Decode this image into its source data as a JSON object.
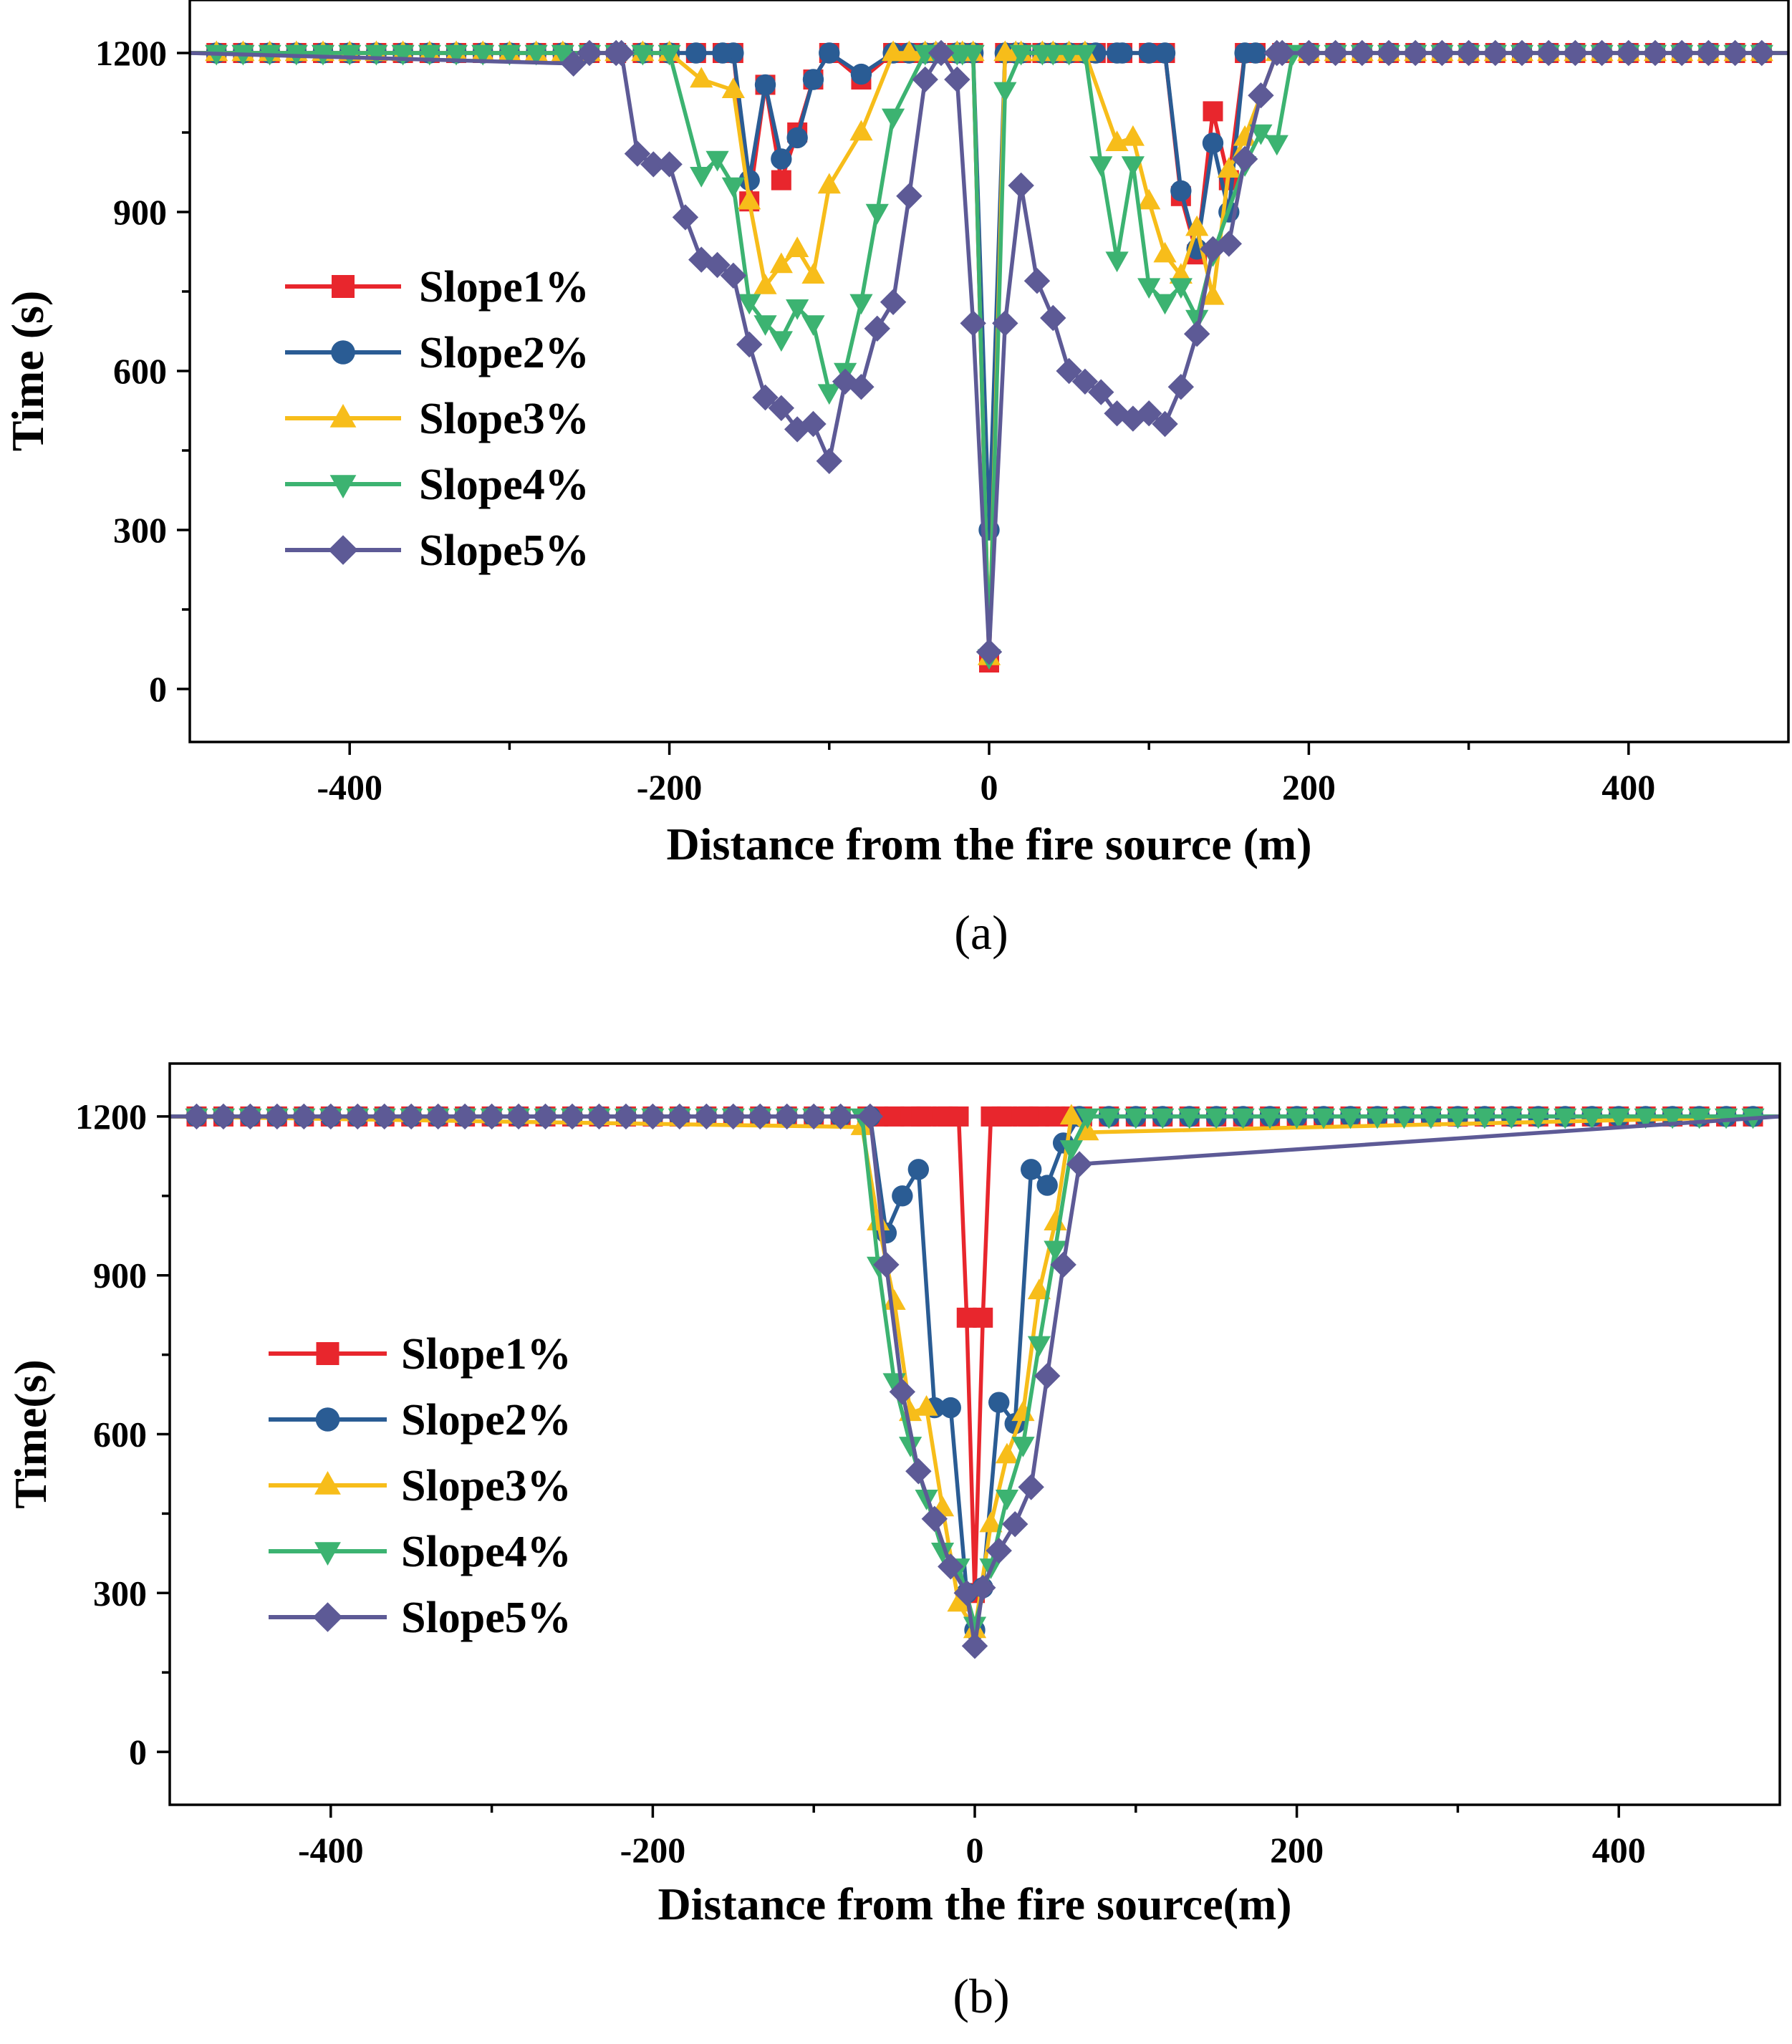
{
  "chart_data": [
    {
      "type": "line",
      "panel_label": "(a)",
      "xlabel": "Distance from the fire source (m)",
      "ylabel": "Time (s)",
      "xlim": [
        -500,
        500
      ],
      "ylim": [
        -100,
        1300
      ],
      "xticks": [
        -400,
        -200,
        0,
        200,
        400
      ],
      "xtick_labels": [
        "-400",
        "-200",
        "0",
        "200",
        "400"
      ],
      "yticks": [
        0,
        300,
        600,
        900,
        1200
      ],
      "ytick_labels": [
        "0",
        "300",
        "600",
        "900",
        "1200"
      ],
      "legend_position": "center-left",
      "series": [
        {
          "name": "Slope1%",
          "color": "#e8262d",
          "marker": "square",
          "x": [
            -500,
            -160,
            -150,
            -140,
            -130,
            -120,
            -110,
            -100,
            -80,
            -60,
            -40,
            -20,
            -10,
            0,
            10,
            20,
            40,
            60,
            80,
            100,
            110,
            120,
            130,
            140,
            150,
            160,
            200,
            500
          ],
          "y": [
            1200,
            1200,
            920,
            1140,
            960,
            1050,
            1150,
            1200,
            1150,
            1200,
            1200,
            1200,
            1200,
            50,
            1200,
            1200,
            1200,
            1200,
            1200,
            1200,
            1200,
            930,
            820,
            1090,
            960,
            1200,
            1200,
            1200
          ]
        },
        {
          "name": "Slope2%",
          "color": "#2a5c94",
          "marker": "circle",
          "x": [
            -500,
            -160,
            -150,
            -140,
            -130,
            -120,
            -110,
            -100,
            -80,
            -60,
            -40,
            -20,
            -10,
            0,
            10,
            20,
            40,
            60,
            80,
            100,
            110,
            120,
            130,
            140,
            150,
            160,
            200,
            500
          ],
          "y": [
            1200,
            1200,
            960,
            1140,
            1000,
            1040,
            1150,
            1200,
            1160,
            1200,
            1200,
            1200,
            1200,
            300,
            1200,
            1200,
            1200,
            1200,
            1200,
            1200,
            1200,
            940,
            830,
            1030,
            900,
            1200,
            1200,
            1200
          ]
        },
        {
          "name": "Slope3%",
          "color": "#f7bd1a",
          "marker": "triangle-up",
          "x": [
            -500,
            -200,
            -180,
            -160,
            -150,
            -140,
            -130,
            -120,
            -110,
            -100,
            -80,
            -60,
            -40,
            -20,
            -10,
            0,
            10,
            20,
            40,
            60,
            80,
            90,
            100,
            110,
            120,
            130,
            140,
            150,
            160,
            180,
            500
          ],
          "y": [
            1200,
            1200,
            1150,
            1130,
            920,
            760,
            800,
            830,
            780,
            950,
            1050,
            1200,
            1200,
            1200,
            1200,
            60,
            1200,
            1200,
            1200,
            1200,
            1030,
            1040,
            920,
            820,
            780,
            870,
            740,
            980,
            1040,
            1200,
            1200
          ]
        },
        {
          "name": "Slope4%",
          "color": "#3cb371",
          "marker": "triangle-down",
          "x": [
            -500,
            -200,
            -180,
            -170,
            -160,
            -150,
            -140,
            -130,
            -120,
            -110,
            -100,
            -90,
            -80,
            -70,
            -60,
            -40,
            -20,
            -10,
            0,
            10,
            20,
            40,
            60,
            70,
            80,
            90,
            100,
            110,
            120,
            130,
            140,
            160,
            170,
            180,
            190,
            500
          ],
          "y": [
            1200,
            1200,
            970,
            1000,
            950,
            730,
            690,
            660,
            720,
            690,
            560,
            600,
            730,
            900,
            1080,
            1200,
            1200,
            1200,
            60,
            1130,
            1200,
            1200,
            1200,
            990,
            810,
            990,
            760,
            730,
            760,
            700,
            820,
            990,
            1050,
            1030,
            1200,
            1200
          ]
        },
        {
          "name": "Slope5%",
          "color": "#5d5a96",
          "marker": "diamond",
          "x": [
            -500,
            -260,
            -250,
            -230,
            -220,
            -210,
            -200,
            -190,
            -180,
            -170,
            -160,
            -150,
            -140,
            -130,
            -120,
            -110,
            -100,
            -90,
            -80,
            -70,
            -60,
            -50,
            -40,
            -30,
            -20,
            -10,
            0,
            10,
            20,
            30,
            40,
            50,
            60,
            70,
            80,
            90,
            100,
            110,
            120,
            130,
            140,
            150,
            160,
            170,
            180,
            500
          ],
          "y": [
            1200,
            1180,
            1200,
            1200,
            1010,
            990,
            990,
            890,
            810,
            800,
            780,
            650,
            550,
            530,
            490,
            500,
            430,
            580,
            570,
            680,
            730,
            930,
            1150,
            1200,
            1150,
            690,
            70,
            690,
            950,
            770,
            700,
            600,
            580,
            560,
            520,
            510,
            520,
            500,
            570,
            670,
            830,
            840,
            1000,
            1120,
            1200,
            1200
          ]
        }
      ]
    },
    {
      "type": "line",
      "panel_label": "(b)",
      "xlabel": "Distance from the fire source(m)",
      "ylabel": "Time(s)",
      "xlim": [
        -500,
        500
      ],
      "ylim": [
        -100,
        1300
      ],
      "xticks": [
        -400,
        -200,
        0,
        200,
        400
      ],
      "xtick_labels": [
        "-400",
        "-200",
        "0",
        "200",
        "400"
      ],
      "yticks": [
        0,
        300,
        600,
        900,
        1200
      ],
      "ytick_labels": [
        "0",
        "300",
        "600",
        "900",
        "1200"
      ],
      "legend_position": "center-left",
      "series": [
        {
          "name": "Slope1%",
          "color": "#e8262d",
          "marker": "square",
          "x": [
            -500,
            -60,
            -50,
            -40,
            -30,
            -20,
            -10,
            -5,
            0,
            5,
            10,
            20,
            30,
            40,
            50,
            60,
            500
          ],
          "y": [
            1200,
            1200,
            1200,
            1200,
            1200,
            1200,
            1200,
            820,
            300,
            820,
            1200,
            1200,
            1200,
            1200,
            1200,
            1200,
            1200
          ]
        },
        {
          "name": "Slope2%",
          "color": "#2a5c94",
          "marker": "circle",
          "x": [
            -500,
            -65,
            -55,
            -45,
            -35,
            -25,
            -15,
            -5,
            0,
            5,
            15,
            25,
            35,
            45,
            55,
            65,
            500
          ],
          "y": [
            1200,
            1200,
            980,
            1050,
            1100,
            650,
            650,
            300,
            230,
            310,
            660,
            620,
            1100,
            1070,
            1150,
            1200,
            1200
          ]
        },
        {
          "name": "Slope3%",
          "color": "#f7bd1a",
          "marker": "triangle-up",
          "x": [
            -500,
            -70,
            -60,
            -50,
            -40,
            -30,
            -20,
            -10,
            0,
            10,
            20,
            30,
            40,
            50,
            60,
            70,
            500
          ],
          "y": [
            1200,
            1180,
            1000,
            850,
            640,
            650,
            460,
            280,
            230,
            430,
            560,
            640,
            870,
            1000,
            1200,
            1170,
            1200
          ]
        },
        {
          "name": "Slope4%",
          "color": "#3cb371",
          "marker": "triangle-down",
          "x": [
            -500,
            -70,
            -60,
            -50,
            -40,
            -30,
            -20,
            -10,
            0,
            10,
            20,
            30,
            40,
            50,
            60,
            70,
            500
          ],
          "y": [
            1200,
            1200,
            920,
            700,
            580,
            480,
            380,
            350,
            240,
            350,
            480,
            580,
            770,
            950,
            1140,
            1200,
            1200
          ]
        },
        {
          "name": "Slope5%",
          "color": "#5d5a96",
          "marker": "diamond",
          "x": [
            -500,
            -65,
            -55,
            -45,
            -35,
            -25,
            -15,
            -5,
            0,
            5,
            15,
            25,
            35,
            45,
            55,
            65,
            500
          ],
          "y": [
            1200,
            1200,
            920,
            680,
            530,
            440,
            350,
            300,
            200,
            310,
            380,
            430,
            500,
            710,
            920,
            1110,
            1200
          ]
        }
      ]
    }
  ]
}
